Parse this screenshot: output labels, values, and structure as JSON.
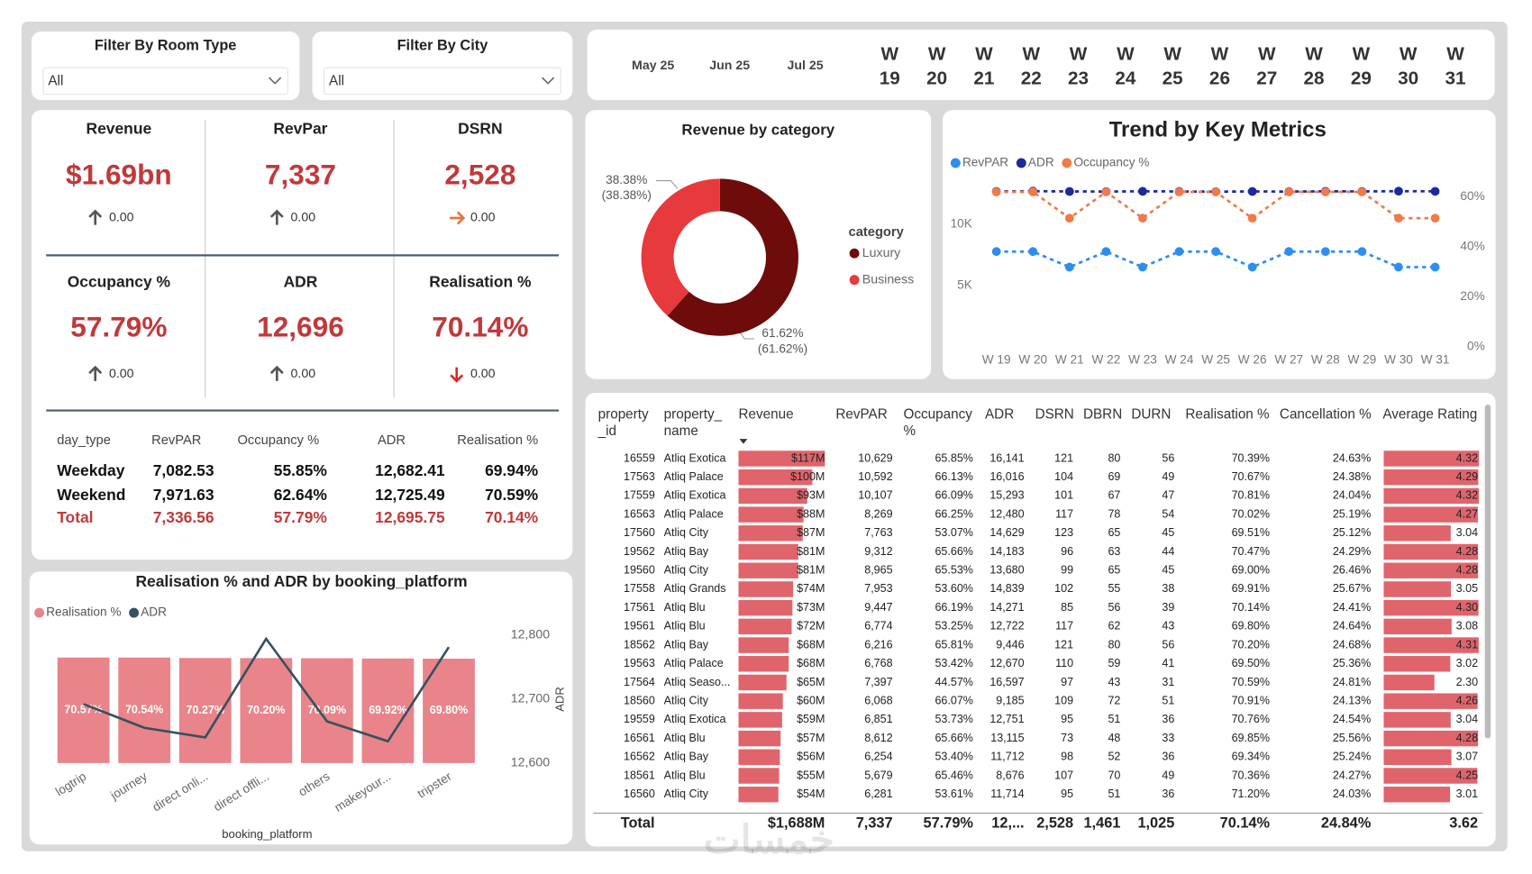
{
  "filters": [
    {
      "label": "Filter By Room Type",
      "value": "All"
    },
    {
      "label": "Filter By City",
      "value": "All"
    }
  ],
  "date_slicer": {
    "months": [
      "May 25",
      "Jun 25",
      "Jul 25"
    ],
    "weeks": [
      "W 19",
      "W 20",
      "W 21",
      "W 22",
      "W 23",
      "W 24",
      "W 25",
      "W 26",
      "W 27",
      "W 28",
      "W 29",
      "W 30",
      "W 31"
    ]
  },
  "kpis": [
    {
      "label": "Revenue",
      "value": "$1.69bn",
      "change": "0.00",
      "trend": "up"
    },
    {
      "label": "RevPar",
      "value": "7,337",
      "change": "0.00",
      "trend": "up"
    },
    {
      "label": "DSRN",
      "value": "2,528",
      "change": "0.00",
      "trend": "right"
    },
    {
      "label": "Occupancy %",
      "value": "57.79%",
      "change": "0.00",
      "trend": "up"
    },
    {
      "label": "ADR",
      "value": "12,696",
      "change": "0.00",
      "trend": "up"
    },
    {
      "label": "Realisation %",
      "value": "70.14%",
      "change": "0.00",
      "trend": "down"
    }
  ],
  "day_type_table": {
    "columns": [
      "day_type",
      "RevPAR",
      "Occupancy %",
      "ADR",
      "Realisation %"
    ],
    "rows": [
      [
        "Weekday",
        "7,082.53",
        "55.85%",
        "12,682.41",
        "69.94%"
      ],
      [
        "Weekend",
        "7,971.63",
        "62.64%",
        "12,725.49",
        "70.59%"
      ]
    ],
    "total": [
      "Total",
      "7,336.56",
      "57.79%",
      "12,695.75",
      "70.14%"
    ]
  },
  "chart_data": [
    {
      "type": "pie",
      "donut": true,
      "title": "Revenue by category",
      "legend_title": "category",
      "categories": [
        "Luxury",
        "Business"
      ],
      "values": [
        61.62,
        38.38
      ],
      "value_labels": [
        "61.62% (61.62%)",
        "38.38% (38.38%)"
      ],
      "colors": [
        "#6e0b0b",
        "#e63a3d"
      ]
    },
    {
      "type": "line",
      "title": "Trend by Key Metrics",
      "categories": [
        "W 19",
        "W 20",
        "W 21",
        "W 22",
        "W 23",
        "W 24",
        "W 25",
        "W 26",
        "W 27",
        "W 28",
        "W 29",
        "W 30",
        "W 31"
      ],
      "series": [
        {
          "name": "RevPAR",
          "color": "#2d8ef0",
          "values": [
            7780,
            7780,
            6510,
            7780,
            6510,
            7780,
            7780,
            6510,
            7780,
            7780,
            7780,
            6510,
            6510
          ]
        },
        {
          "name": "ADR",
          "color": "#1b2a9e",
          "values": [
            12700,
            12720,
            12700,
            12690,
            12710,
            12700,
            12680,
            12700,
            12690,
            12710,
            12700,
            12720,
            12710
          ]
        },
        {
          "name": "Occupancy %",
          "color": "#f07b4a",
          "axis": "y2",
          "values": [
            61.9,
            61.9,
            51.4,
            61.9,
            51.4,
            61.9,
            61.9,
            51.4,
            61.9,
            61.9,
            61.9,
            51.4,
            51.4
          ]
        }
      ],
      "ylim": [
        0,
        13500
      ],
      "yticks": [
        {
          "value": 5000,
          "label": "5K"
        },
        {
          "value": 10000,
          "label": "10K"
        }
      ],
      "y2lim": [
        0,
        66
      ],
      "y2ticks": [
        {
          "value": 0,
          "label": "0%"
        },
        {
          "value": 20,
          "label": "20%"
        },
        {
          "value": 40,
          "label": "40%"
        },
        {
          "value": 60,
          "label": "60%"
        }
      ]
    },
    {
      "type": "bar",
      "title": "Realisation % and ADR by booking_platform",
      "x_label": "booking_platform",
      "y2_label": "ADR",
      "categories": [
        "logtrip",
        "journey",
        "direct onli...",
        "direct offli...",
        "others",
        "makeyour...",
        "tripster"
      ],
      "series": [
        {
          "name": "Realisation %",
          "type": "bar",
          "color": "#e8848a",
          "values": [
            70.57,
            70.54,
            70.27,
            70.2,
            70.09,
            69.92,
            69.8
          ],
          "value_labels": [
            "70.57%",
            "70.54%",
            "70.27%",
            "70.20%",
            "70.09%",
            "69.92%",
            "69.80%"
          ]
        },
        {
          "name": "ADR",
          "type": "line",
          "axis": "y2",
          "color": "#37505f",
          "values": [
            12692,
            12655,
            12640,
            12794,
            12665,
            12634,
            12781
          ]
        }
      ],
      "ylim": [
        0,
        90
      ],
      "y2lim": [
        12600,
        12810
      ],
      "y2ticks": [
        {
          "value": 12600,
          "label": "12,600"
        },
        {
          "value": 12700,
          "label": "12,700"
        },
        {
          "value": 12800,
          "label": "12,800"
        }
      ]
    }
  ],
  "property_table": {
    "columns": [
      "property _id",
      "property_ name",
      "Revenue",
      "RevPAR",
      "Occupancy %",
      "ADR",
      "DSRN",
      "DBRN",
      "DURN",
      "Realisation %",
      "Cancellation %",
      "Average Rating"
    ],
    "rows": [
      [
        "16559",
        "Atliq Exotica",
        "$117M",
        "10,629",
        "65.85%",
        "16,141",
        "121",
        "80",
        "56",
        "70.39%",
        "24.63%",
        "4.32"
      ],
      [
        "17563",
        "Atliq Palace",
        "$100M",
        "10,592",
        "66.13%",
        "16,016",
        "104",
        "69",
        "49",
        "70.67%",
        "24.38%",
        "4.29"
      ],
      [
        "17559",
        "Atliq Exotica",
        "$93M",
        "10,107",
        "66.09%",
        "15,293",
        "101",
        "67",
        "47",
        "70.81%",
        "24.04%",
        "4.32"
      ],
      [
        "16563",
        "Atliq Palace",
        "$88M",
        "8,269",
        "66.25%",
        "12,480",
        "117",
        "78",
        "54",
        "70.02%",
        "25.19%",
        "4.27"
      ],
      [
        "17560",
        "Atliq City",
        "$87M",
        "7,763",
        "53.07%",
        "14,629",
        "123",
        "65",
        "45",
        "69.51%",
        "25.12%",
        "3.04"
      ],
      [
        "19562",
        "Atliq Bay",
        "$81M",
        "9,312",
        "65.66%",
        "14,183",
        "96",
        "63",
        "44",
        "70.47%",
        "24.29%",
        "4.28"
      ],
      [
        "19560",
        "Atliq City",
        "$81M",
        "8,965",
        "65.53%",
        "13,680",
        "99",
        "65",
        "45",
        "69.00%",
        "26.46%",
        "4.28"
      ],
      [
        "17558",
        "Atliq Grands",
        "$74M",
        "7,953",
        "53.60%",
        "14,839",
        "102",
        "55",
        "38",
        "69.91%",
        "25.67%",
        "3.05"
      ],
      [
        "17561",
        "Atliq Blu",
        "$73M",
        "9,447",
        "66.19%",
        "14,271",
        "85",
        "56",
        "39",
        "70.14%",
        "24.41%",
        "4.30"
      ],
      [
        "19561",
        "Atliq Blu",
        "$72M",
        "6,774",
        "53.25%",
        "12,722",
        "117",
        "62",
        "43",
        "69.80%",
        "24.64%",
        "3.08"
      ],
      [
        "18562",
        "Atliq Bay",
        "$68M",
        "6,216",
        "65.81%",
        "9,446",
        "121",
        "80",
        "56",
        "70.20%",
        "24.68%",
        "4.31"
      ],
      [
        "19563",
        "Atliq Palace",
        "$68M",
        "6,768",
        "53.42%",
        "12,670",
        "110",
        "59",
        "41",
        "69.50%",
        "25.36%",
        "3.02"
      ],
      [
        "17564",
        "Atliq Seaso...",
        "$65M",
        "7,397",
        "44.57%",
        "16,597",
        "97",
        "43",
        "31",
        "70.59%",
        "24.81%",
        "2.30"
      ],
      [
        "18560",
        "Atliq City",
        "$60M",
        "6,068",
        "66.07%",
        "9,185",
        "109",
        "72",
        "51",
        "70.91%",
        "24.13%",
        "4.26"
      ],
      [
        "19559",
        "Atliq Exotica",
        "$59M",
        "6,851",
        "53.73%",
        "12,751",
        "95",
        "51",
        "36",
        "70.76%",
        "24.54%",
        "3.04"
      ],
      [
        "16561",
        "Atliq Blu",
        "$57M",
        "8,612",
        "65.66%",
        "13,115",
        "73",
        "48",
        "33",
        "69.85%",
        "25.56%",
        "4.28"
      ],
      [
        "16562",
        "Atliq Bay",
        "$56M",
        "6,254",
        "53.40%",
        "11,712",
        "98",
        "52",
        "36",
        "69.34%",
        "25.24%",
        "3.07"
      ],
      [
        "18561",
        "Atliq Blu",
        "$55M",
        "5,679",
        "65.46%",
        "8,676",
        "107",
        "70",
        "49",
        "70.36%",
        "24.27%",
        "4.25"
      ],
      [
        "16560",
        "Atliq City",
        "$54M",
        "6,281",
        "53.61%",
        "11,714",
        "95",
        "51",
        "36",
        "71.20%",
        "24.03%",
        "3.01"
      ]
    ],
    "revenue_bars": {
      "color": "#e0646c",
      "values": [
        117,
        100,
        93,
        88,
        87,
        81,
        81,
        74,
        73,
        72,
        68,
        68,
        65,
        60,
        59,
        57,
        56,
        55,
        54
      ],
      "xlim": [
        0,
        117
      ]
    },
    "rating_bars": {
      "color": "#e0646c",
      "values": [
        4.32,
        4.29,
        4.32,
        4.27,
        3.04,
        4.28,
        4.28,
        3.05,
        4.3,
        3.08,
        4.31,
        3.02,
        2.3,
        4.26,
        3.04,
        4.28,
        3.07,
        4.25,
        3.01
      ],
      "xlim": [
        0,
        4.32
      ]
    },
    "total": {
      "label": "Total",
      "cells": [
        "$1,688M",
        "7,337",
        "57.79%",
        "12,...",
        "2,528",
        "1,461",
        "1,025",
        "70.14%",
        "24.84%",
        "3.62"
      ]
    }
  },
  "watermark": "خمسات"
}
